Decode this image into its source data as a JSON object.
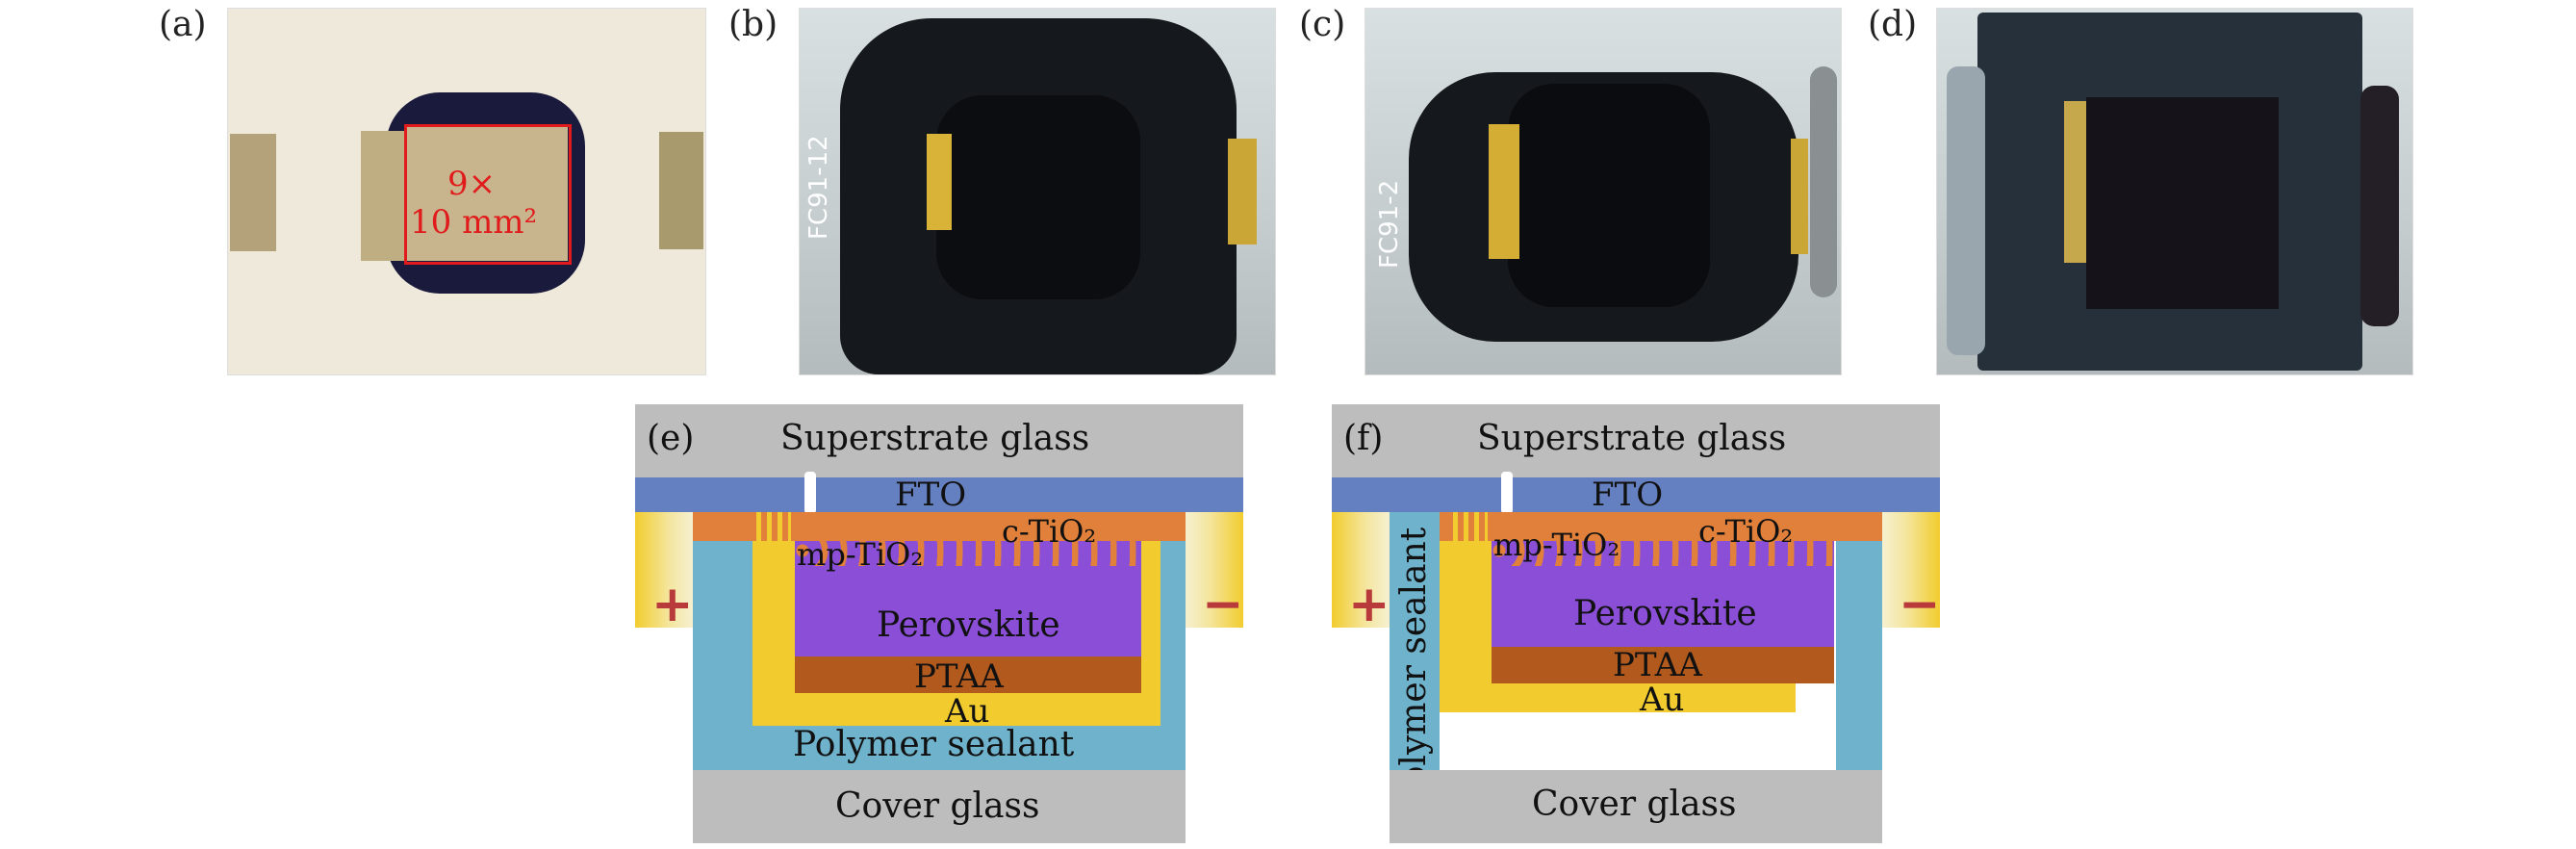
{
  "panels": {
    "a": "(a)",
    "b": "(b)",
    "c": "(c)",
    "d": "(d)",
    "e": "(e)",
    "f": "(f)"
  },
  "area_label": {
    "line1": "9×",
    "line2": "10 mm²"
  },
  "substrate_marks": {
    "b": "FC91-12",
    "c": "FC91-2"
  },
  "diagram_e": {
    "superstrate": "Superstrate glass",
    "fto": "FTO",
    "mp_tio2": "mp-TiO₂",
    "c_tio2": "c-TiO₂",
    "perovskite": "Perovskite",
    "ptaa": "PTAA",
    "au": "Au",
    "sealant": "Polymer sealant",
    "cover": "Cover glass",
    "plus": "+",
    "minus": "−"
  },
  "diagram_f": {
    "superstrate": "Superstrate glass",
    "fto": "FTO",
    "mp_tio2": "mp-TiO₂",
    "c_tio2": "c-TiO₂",
    "perovskite": "Perovskite",
    "ptaa": "PTAA",
    "au": "Au",
    "sealant": "Polymer sealant",
    "cover": "Cover glass",
    "plus": "+",
    "minus": "−"
  },
  "colors": {
    "glass": "#bdbdbd",
    "fto": "#6580c0",
    "tio2": "#e0803a",
    "perovskite": "#8a4fd6",
    "ptaa": "#b25a1e",
    "au": "#f2cc2e",
    "sealant": "#6fb2cc",
    "plus": "#b83a3a",
    "minus": "#b83a3a",
    "area_box": "#e11b1b"
  }
}
